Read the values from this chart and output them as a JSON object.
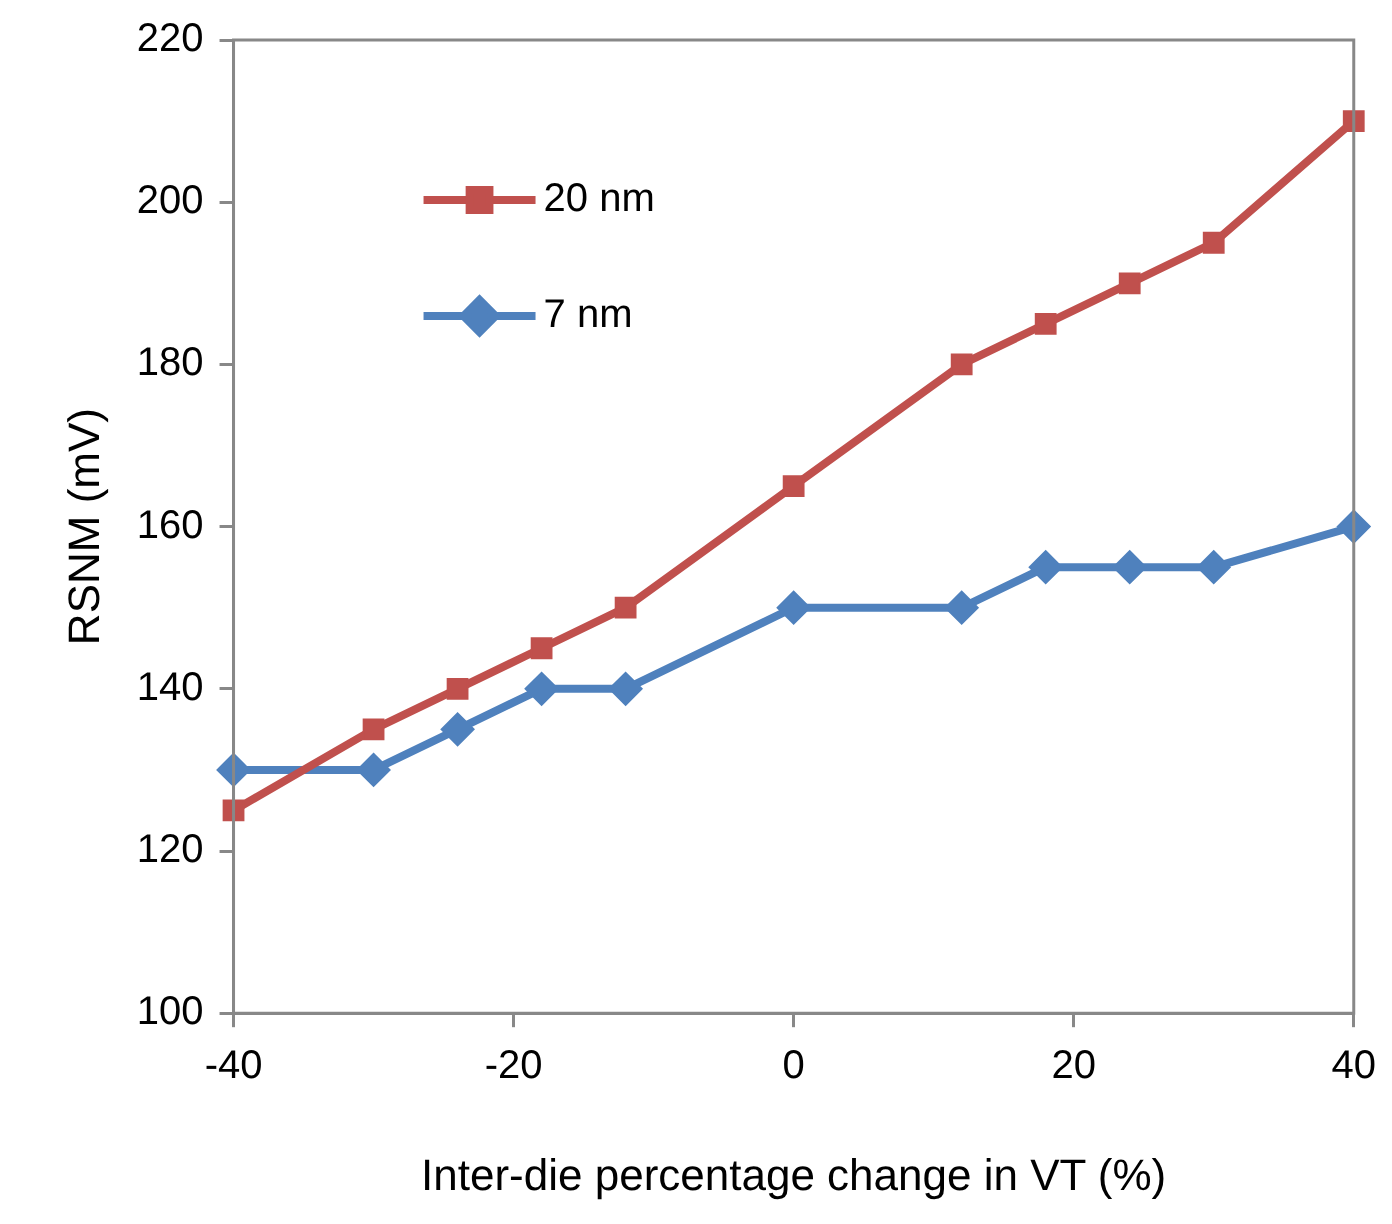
{
  "chart_data": {
    "type": "line",
    "xlabel": "Inter-die percentage change in VT (%)",
    "ylabel": "RSNM (mV)",
    "x": [
      -40,
      -30,
      -24,
      -18,
      -12,
      0,
      12,
      18,
      24,
      30,
      40
    ],
    "series": [
      {
        "name": "20 nm",
        "color": "#c0504d",
        "marker": "square",
        "values": [
          125,
          135,
          140,
          145,
          150,
          165,
          180,
          185,
          190,
          195,
          210
        ]
      },
      {
        "name": "7 nm",
        "color": "#4f81bd",
        "marker": "diamond",
        "values": [
          130,
          130,
          135,
          140,
          140,
          150,
          150,
          155,
          155,
          155,
          160
        ]
      }
    ],
    "xlim": [
      -40,
      40
    ],
    "xticks": [
      -40,
      -20,
      0,
      20,
      40
    ],
    "ylim": [
      100,
      220
    ],
    "yticks": [
      100,
      120,
      140,
      160,
      180,
      200,
      220
    ],
    "grid": false,
    "legend": "top left",
    "line_style": "solid"
  }
}
